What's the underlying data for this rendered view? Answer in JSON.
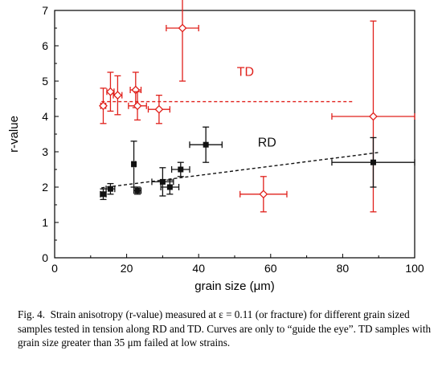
{
  "chart_data": {
    "type": "scatter",
    "xlabel": "grain size (μm)",
    "ylabel": "r-value",
    "xlim": [
      0,
      100
    ],
    "ylim": [
      0,
      7
    ],
    "x_ticks": [
      "0",
      "20",
      "40",
      "60",
      "80",
      "100"
    ],
    "y_ticks": [
      "0",
      "1",
      "2",
      "3",
      "4",
      "5",
      "6",
      "7"
    ],
    "grid": false,
    "series": [
      {
        "name": "TD",
        "color": "#e0201b",
        "marker": "open-diamond",
        "points": [
          {
            "x": 13.5,
            "y": 4.3,
            "xerr": 0.7,
            "yerr": 0.5
          },
          {
            "x": 15.5,
            "y": 4.7,
            "xerr": 1.0,
            "yerr": 0.55
          },
          {
            "x": 17.5,
            "y": 4.6,
            "xerr": 1.2,
            "yerr": 0.55
          },
          {
            "x": 22.5,
            "y": 4.75,
            "xerr": 1.5,
            "yerr": 0.5
          },
          {
            "x": 23.0,
            "y": 4.3,
            "xerr": 2.5,
            "yerr": 0.4
          },
          {
            "x": 29.0,
            "y": 4.2,
            "xerr": 3.0,
            "yerr": 0.4
          },
          {
            "x": 35.5,
            "y": 6.5,
            "xerr": 4.5,
            "yerr": 1.5
          },
          {
            "x": 58.0,
            "y": 1.8,
            "xerr": 6.5,
            "yerr": 0.5
          },
          {
            "x": 88.5,
            "y": 4.0,
            "xerr": 11.5,
            "yerr": 2.7
          }
        ],
        "fit": {
          "style": "dashed",
          "x": [
            13,
            83
          ],
          "y": [
            4.42,
            4.42
          ]
        }
      },
      {
        "name": "RD",
        "color": "#111111",
        "marker": "filled-square",
        "points": [
          {
            "x": 13.5,
            "y": 1.8,
            "xerr": 0.8,
            "yerr": 0.15
          },
          {
            "x": 15.5,
            "y": 1.95,
            "xerr": 1.2,
            "yerr": 0.15
          },
          {
            "x": 22.0,
            "y": 2.65,
            "xerr": 0.5,
            "yerr": 0.65
          },
          {
            "x": 23.0,
            "y": 1.9,
            "xerr": 1.0,
            "yerr": 0.1
          },
          {
            "x": 30.0,
            "y": 2.15,
            "xerr": 3.0,
            "yerr": 0.4
          },
          {
            "x": 32.0,
            "y": 2.0,
            "xerr": 2.5,
            "yerr": 0.2
          },
          {
            "x": 35.0,
            "y": 2.5,
            "xerr": 2.5,
            "yerr": 0.2
          },
          {
            "x": 42.0,
            "y": 3.2,
            "xerr": 4.5,
            "yerr": 0.5
          },
          {
            "x": 88.5,
            "y": 2.7,
            "xerr": 11.5,
            "yerr": 0.7
          }
        ],
        "fit": {
          "style": "dashed",
          "x": [
            13,
            90
          ],
          "y": [
            1.98,
            2.98
          ]
        }
      }
    ],
    "annotations": [
      {
        "text": "TD",
        "x": 53,
        "y": 5.15,
        "color": "#e0201b"
      },
      {
        "text": "RD",
        "x": 59,
        "y": 3.15,
        "color": "#111111"
      }
    ]
  },
  "caption": {
    "label": "Fig. 4.",
    "text": "Strain anisotropy (r-value) measured at ε = 0.11 (or fracture) for different grain sized samples tested in tension along RD and TD. Curves are only to “guide the eye”. TD samples with grain size greater than 35 μm failed at low strains."
  }
}
